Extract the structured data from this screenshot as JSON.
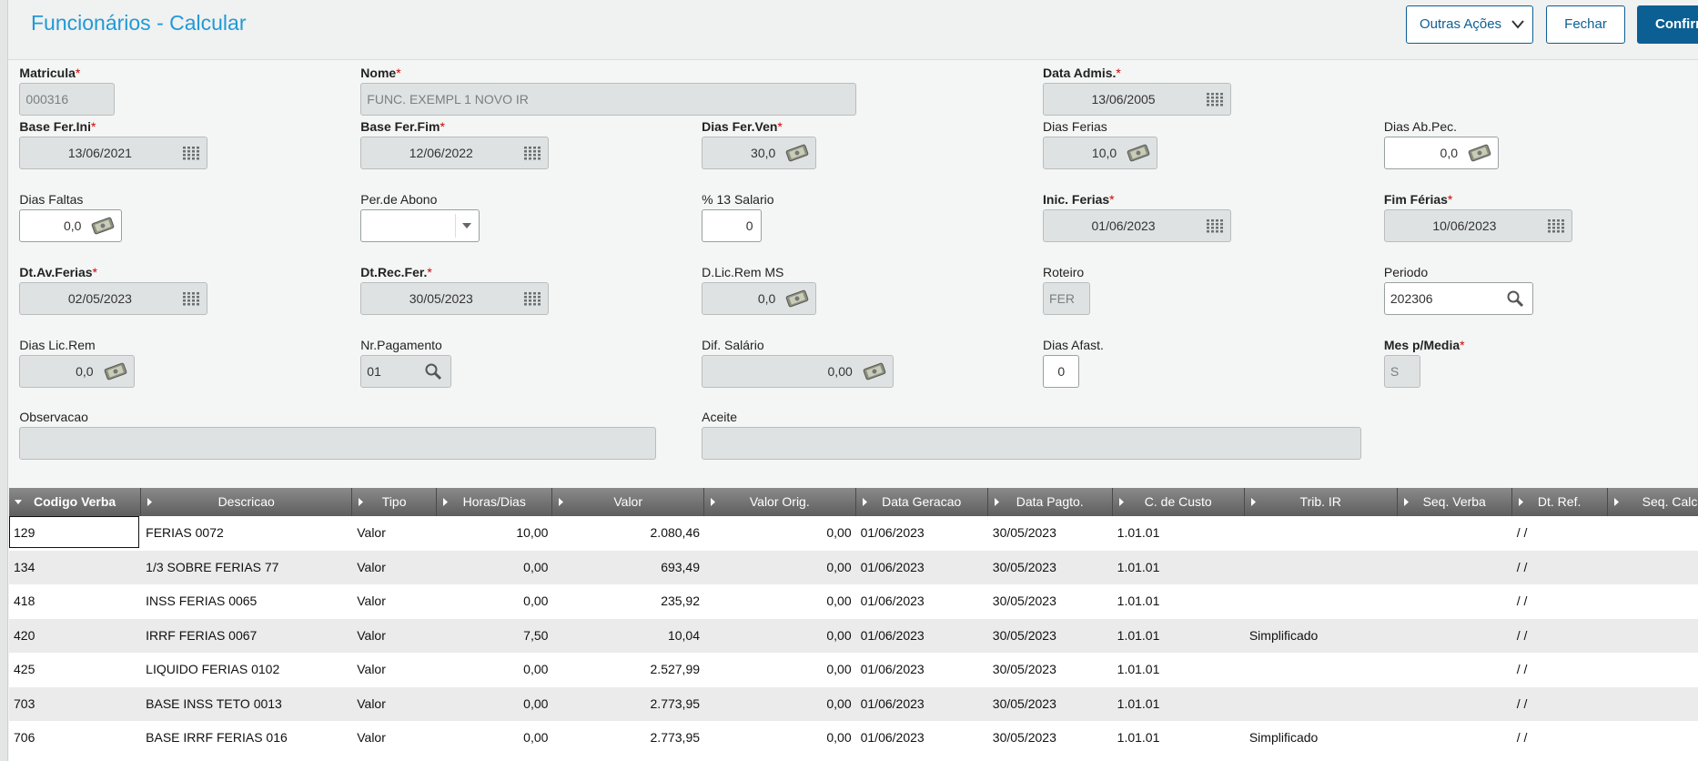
{
  "header": {
    "title": "Funcionários - Calcular",
    "buttons": [
      "Outras Ações",
      "Fechar",
      "Confirmar"
    ]
  },
  "form": {
    "required_mark": "*",
    "fields": [
      {
        "label": "Matricula",
        "required": true,
        "value": "000316"
      },
      {
        "label": "Nome",
        "required": true,
        "value": "FUNC. EXEMPL 1 NOVO IR"
      },
      {
        "label": "Data Admis.",
        "required": true,
        "value": "13/06/2005"
      },
      {
        "label": "Base Fer.Ini",
        "required": true,
        "value": "13/06/2021"
      },
      {
        "label": "Base Fer.Fim",
        "required": true,
        "value": "12/06/2022"
      },
      {
        "label": "Dias Fer.Ven",
        "required": true,
        "value": "30,0"
      },
      {
        "label": "Dias Ferias",
        "required": false,
        "value": "10,0"
      },
      {
        "label": "Dias Ab.Pec.",
        "required": false,
        "value": "0,0"
      },
      {
        "label": "Dias Faltas",
        "required": false,
        "value": "0,0"
      },
      {
        "label": "Per.de Abono",
        "required": false
      },
      {
        "label": "% 13 Salario",
        "required": false,
        "value": "0"
      },
      {
        "label": "Inic. Ferias",
        "required": true,
        "value": "01/06/2023"
      },
      {
        "label": "Fim Férias",
        "required": true,
        "value": "10/06/2023"
      },
      {
        "label": "Dt.Av.Ferias",
        "required": true,
        "value": "02/05/2023"
      },
      {
        "label": "Dt.Rec.Fer.",
        "required": true,
        "value": "30/05/2023"
      },
      {
        "label": "D.Lic.Rem MS",
        "required": false,
        "value": "0,0"
      },
      {
        "label": "Roteiro",
        "required": false,
        "value": "FER"
      },
      {
        "label": "Periodo",
        "required": false,
        "value": "202306"
      },
      {
        "label": "Dias Lic.Rem",
        "required": false,
        "value": "0,0"
      },
      {
        "label": "Nr.Pagamento",
        "required": false,
        "value": "01"
      },
      {
        "label": "Dif. Salário",
        "required": false,
        "value": "0,00"
      },
      {
        "label": "Dias Afast.",
        "required": false,
        "value": "0"
      },
      {
        "label": "Mes p/Media",
        "required": true,
        "value": "S"
      },
      {
        "label": "Observacao",
        "required": false
      },
      {
        "label": "Aceite",
        "required": false
      }
    ]
  },
  "table": {
    "columns": [
      "Codigo Verba",
      "Descricao",
      "Tipo",
      "Horas/Dias",
      "Valor",
      "Valor Orig.",
      "Data Geracao",
      "Data Pagto.",
      "C. de Custo",
      "Trib. IR",
      "Seq. Verba",
      "Dt. Ref.",
      "Seq. Calc"
    ],
    "rows": [
      [
        "129",
        "FERIAS 0072",
        "Valor",
        "10,00",
        "2.080,46",
        "0,00",
        "01/06/2023",
        "30/05/2023",
        "1.01.01",
        null,
        null,
        " /  /",
        null
      ],
      [
        "134",
        "1/3 SOBRE FERIAS 77",
        "Valor",
        "0,00",
        "693,49",
        "0,00",
        "01/06/2023",
        "30/05/2023",
        "1.01.01",
        null,
        null,
        " /  /",
        null
      ],
      [
        "418",
        "INSS FERIAS 0065",
        "Valor",
        "0,00",
        "235,92",
        "0,00",
        "01/06/2023",
        "30/05/2023",
        "1.01.01",
        null,
        null,
        " /  /",
        null
      ],
      [
        "420",
        "IRRF FERIAS 0067",
        "Valor",
        "7,50",
        "10,04",
        "0,00",
        "01/06/2023",
        "30/05/2023",
        "1.01.01",
        "Simplificado",
        null,
        " /  /",
        null
      ],
      [
        "425",
        "LIQUIDO FERIAS 0102",
        "Valor",
        "0,00",
        "2.527,99",
        "0,00",
        "01/06/2023",
        "30/05/2023",
        "1.01.01",
        null,
        null,
        " /  /",
        null
      ],
      [
        "703",
        "BASE INSS TETO 0013",
        "Valor",
        "0,00",
        "2.773,95",
        "0,00",
        "01/06/2023",
        "30/05/2023",
        "1.01.01",
        null,
        null,
        " /  /",
        null
      ],
      [
        "706",
        "BASE IRRF FERIAS 016",
        "Valor",
        "0,00",
        "2.773,95",
        "0,00",
        "01/06/2023",
        "30/05/2023",
        "1.01.01",
        "Simplificado",
        null,
        " /  /",
        null
      ]
    ]
  }
}
